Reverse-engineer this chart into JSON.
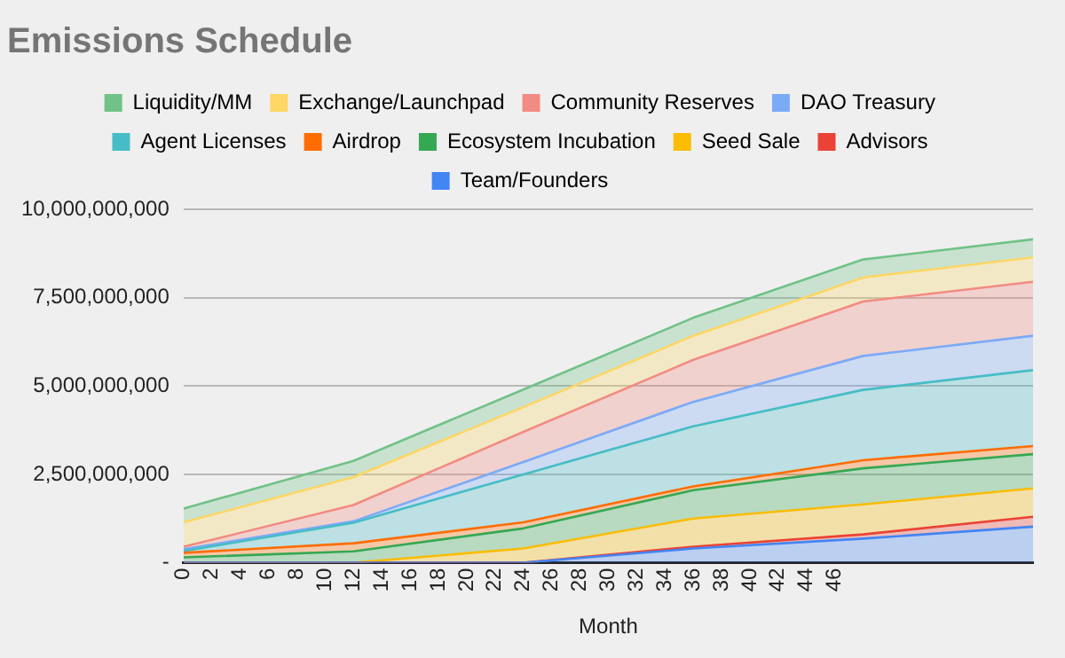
{
  "chart_data": {
    "type": "area",
    "title": "Emissions Schedule",
    "xlabel": "Month",
    "stacked": true,
    "grid": "y",
    "legend": "top",
    "marker": "none",
    "x": [
      0,
      12,
      24,
      36,
      48,
      60
    ],
    "xlim": [
      0,
      60
    ],
    "xticks": [
      0,
      2,
      4,
      6,
      8,
      10,
      12,
      14,
      16,
      18,
      20,
      22,
      24,
      26,
      28,
      30,
      32,
      34,
      36,
      38,
      40,
      42,
      44,
      46
    ],
    "ylim": [
      0,
      10000000000
    ],
    "yticks": [
      {
        "value": 0,
        "label": "-"
      },
      {
        "value": 2500000000,
        "label": "2,500,000,000"
      },
      {
        "value": 5000000000,
        "label": "5,000,000,000"
      },
      {
        "value": 7500000000,
        "label": "7,500,000,000"
      },
      {
        "value": 10000000000,
        "label": "10,000,000,000"
      }
    ],
    "series": [
      {
        "name": "Team/Founders",
        "color": "#4285f4",
        "values": [
          0,
          0,
          0,
          400000000,
          680000000,
          1020000000
        ]
      },
      {
        "name": "Advisors",
        "color": "#ea4335",
        "values": [
          0,
          0,
          0,
          50000000,
          120000000,
          280000000
        ]
      },
      {
        "name": "Seed Sale",
        "color": "#fbbc04",
        "values": [
          0,
          0,
          400000000,
          800000000,
          850000000,
          800000000
        ]
      },
      {
        "name": "Ecosystem Incubation",
        "color": "#34a853",
        "values": [
          150000000,
          320000000,
          570000000,
          800000000,
          1020000000,
          970000000
        ]
      },
      {
        "name": "Airdrop",
        "color": "#ff6d01",
        "values": [
          130000000,
          230000000,
          170000000,
          110000000,
          230000000,
          230000000
        ]
      },
      {
        "name": "Agent Licenses",
        "color": "#46bdc6",
        "values": [
          50000000,
          580000000,
          1360000000,
          1700000000,
          1990000000,
          2150000000
        ]
      },
      {
        "name": "DAO Treasury",
        "color": "#7baaf7",
        "values": [
          50000000,
          40000000,
          350000000,
          690000000,
          960000000,
          970000000
        ]
      },
      {
        "name": "Community Reserves",
        "color": "#f28b82",
        "values": [
          70000000,
          460000000,
          850000000,
          1190000000,
          1540000000,
          1530000000
        ]
      },
      {
        "name": "Exchange/Launchpad",
        "color": "#fdd663",
        "values": [
          690000000,
          790000000,
          700000000,
          680000000,
          680000000,
          690000000
        ]
      },
      {
        "name": "Liquidity/MM",
        "color": "#71c287",
        "values": [
          390000000,
          460000000,
          500000000,
          510000000,
          510000000,
          510000000
        ]
      }
    ]
  }
}
